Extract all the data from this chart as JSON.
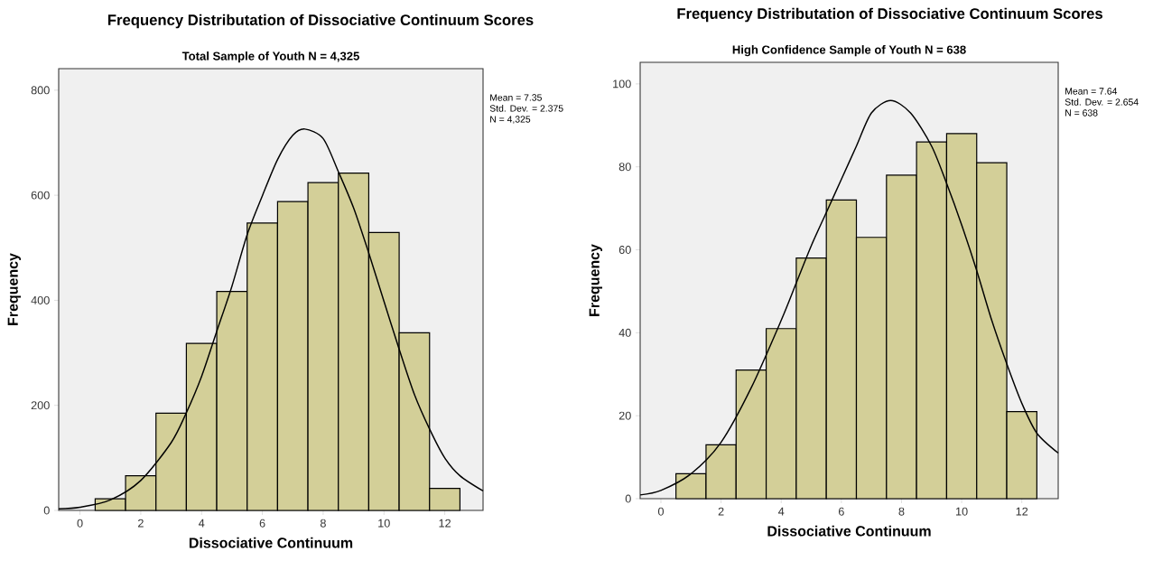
{
  "chart_data": [
    {
      "type": "histogram",
      "title": "Frequency Distributation of Dissociative Continuum Scores",
      "subtitle": "Total Sample of Youth N = 4,325",
      "xlabel": "Dissociative Continuum",
      "ylabel": "Frequency",
      "bins": [
        0.5,
        1.5,
        2.5,
        3.5,
        4.5,
        5.5,
        6.5,
        7.5,
        8.5,
        9.5,
        10.5,
        11.5,
        12.5
      ],
      "values": [
        22,
        66,
        185,
        318,
        417,
        547,
        588,
        624,
        642,
        529,
        338,
        42
      ],
      "color": "#d3cf98",
      "xlim": [
        -0.7,
        13.26
      ],
      "ylim": [
        0,
        841
      ],
      "xticks": [
        0,
        2,
        4,
        6,
        8,
        10,
        12
      ],
      "yticks": [
        0,
        200,
        400,
        600,
        800
      ],
      "annotations": [
        "Mean = 7.35",
        "Std. Dev. = 2.375",
        "N = 4,325"
      ],
      "series": [
        {
          "type": "line",
          "color": "#000000",
          "x": [
            -0.7,
            0,
            1,
            2,
            3,
            3.5,
            4,
            4.5,
            5,
            5.5,
            6,
            6.5,
            7,
            7.4,
            8,
            8.5,
            9,
            9.5,
            10,
            10.5,
            11,
            11.5,
            12,
            12.5,
            13.26
          ],
          "values": [
            3,
            6,
            20,
            57,
            129,
            186,
            255,
            341,
            427,
            525,
            599,
            668,
            714,
            726,
            708,
            645,
            576,
            490,
            398,
            307,
            221,
            155,
            100,
            66,
            37
          ]
        }
      ]
    },
    {
      "type": "histogram",
      "title": "Frequency Distributation of Dissociative Continuum Scores",
      "subtitle": "High Confidence Sample of Youth N = 638",
      "xlabel": "Dissociative Continuum",
      "ylabel": "Frequency",
      "bins": [
        0.5,
        1.5,
        2.5,
        3.5,
        4.5,
        5.5,
        6.5,
        7.5,
        8.5,
        9.5,
        10.5,
        11.5,
        12.5
      ],
      "values": [
        6,
        13,
        31,
        41,
        58,
        72,
        63,
        78,
        86,
        88,
        81,
        21
      ],
      "color": "#d3cf98",
      "xlim": [
        -0.69,
        13.21
      ],
      "ylim": [
        0,
        105.2
      ],
      "xticks": [
        0,
        2,
        4,
        6,
        8,
        10,
        12
      ],
      "yticks": [
        0,
        20,
        40,
        60,
        80,
        100
      ],
      "annotations": [
        "Mean = 7.64",
        "Std. Dev. = 2.654",
        "N = 638"
      ],
      "series": [
        {
          "type": "line",
          "color": "#000000",
          "x": [
            -0.69,
            0,
            1,
            2,
            3,
            4,
            4.5,
            5,
            5.5,
            6,
            6.5,
            7,
            7.64,
            8.3,
            9,
            9.5,
            10,
            10.5,
            11,
            11.5,
            12,
            12.5,
            13.21
          ],
          "values": [
            0.9,
            2,
            6,
            13.6,
            26.7,
            43,
            52,
            61,
            69,
            77,
            85,
            93,
            96,
            93,
            85,
            76,
            66,
            55,
            43,
            32.5,
            23,
            15.8,
            11
          ]
        }
      ]
    }
  ]
}
